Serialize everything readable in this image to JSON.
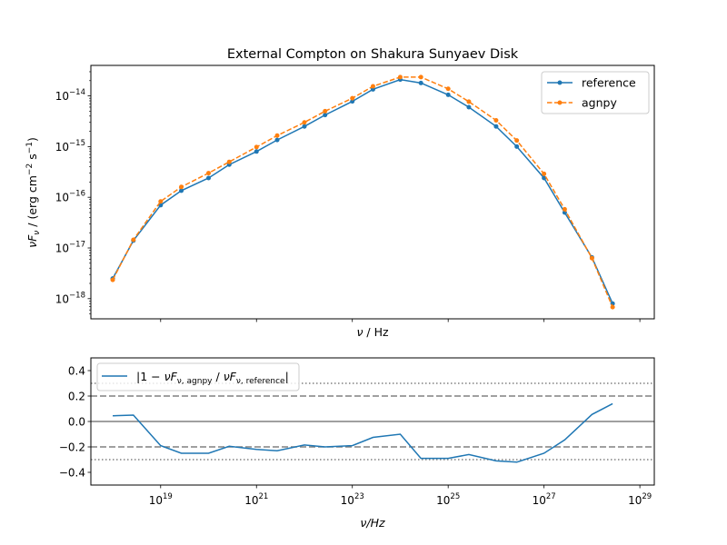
{
  "chart_data": [
    {
      "type": "line",
      "title": "External Compton on Shakura Sunyaev Disk",
      "xlabel": "ν / Hz",
      "ylabel": "νF_ν / (erg cm⁻² s⁻¹)",
      "xscale": "log",
      "yscale": "log",
      "xlim": [
        3.5e+17,
        2e+29
      ],
      "ylim": [
        4e-19,
        4e-14
      ],
      "x_ticks": [
        1e+19,
        1e+21,
        1e+23,
        1e+25,
        1e+27,
        1e+29
      ],
      "y_ticks": [
        {
          "value": 1e-18,
          "base": "10",
          "exp": "−18"
        },
        {
          "value": 1e-17,
          "base": "10",
          "exp": "−17"
        },
        {
          "value": 1e-16,
          "base": "10",
          "exp": "−16"
        },
        {
          "value": 1e-15,
          "base": "10",
          "exp": "−15"
        },
        {
          "value": 1e-14,
          "base": "10",
          "exp": "−14"
        }
      ],
      "legend_position": "top-right",
      "grid": false,
      "x": [
        1e+18,
        2.7e+18,
        1e+19,
        2.7e+19,
        1e+20,
        2.7e+20,
        1e+21,
        2.7e+21,
        1e+22,
        2.7e+22,
        1e+23,
        2.7e+23,
        1e+24,
        2.7e+24,
        1e+25,
        2.7e+25,
        1e+26,
        2.7e+26,
        1e+27,
        2.7e+27,
        1e+28,
        2.7e+28
      ],
      "series": [
        {
          "name": "reference",
          "color": "#1f77b4",
          "linestyle": "solid",
          "values": [
            2.5e-18,
            1.4e-17,
            7e-17,
            1.35e-16,
            2.4e-16,
            4.4e-16,
            8e-16,
            1.35e-15,
            2.5e-15,
            4.2e-15,
            7.8e-15,
            1.35e-14,
            2.1e-14,
            1.8e-14,
            1.05e-14,
            6e-15,
            2.5e-15,
            1e-15,
            2.4e-16,
            5e-17,
            6.5e-18,
            8e-19
          ]
        },
        {
          "name": "agnpy",
          "color": "#ff7f0e",
          "linestyle": "dashed",
          "values": [
            2.35e-18,
            1.45e-17,
            8.3e-17,
            1.6e-16,
            3e-16,
            5e-16,
            9.8e-16,
            1.65e-15,
            3e-15,
            5e-15,
            9e-15,
            1.55e-14,
            2.35e-14,
            2.35e-14,
            1.38e-14,
            7.7e-15,
            3.3e-15,
            1.32e-15,
            2.9e-16,
            5.8e-17,
            6.3e-18,
            6.8e-19
          ]
        }
      ]
    },
    {
      "type": "line",
      "xlabel": "ν/Hz",
      "xscale": "log",
      "xlim": [
        3.5e+17,
        2e+29
      ],
      "ylim": [
        -0.5,
        0.5
      ],
      "y_ticks": [
        {
          "value": -0.4,
          "label": "−0.4"
        },
        {
          "value": -0.2,
          "label": "−0.2"
        },
        {
          "value": 0.0,
          "label": "0.0"
        },
        {
          "value": 0.2,
          "label": "0.2"
        },
        {
          "value": 0.4,
          "label": "0.4"
        }
      ],
      "x_ticks": [
        {
          "value": 1e+19,
          "base": "10",
          "exp": "19"
        },
        {
          "value": 1e+21,
          "base": "10",
          "exp": "21"
        },
        {
          "value": 1e+23,
          "base": "10",
          "exp": "23"
        },
        {
          "value": 1e+25,
          "base": "10",
          "exp": "25"
        },
        {
          "value": 1e+27,
          "base": "10",
          "exp": "27"
        },
        {
          "value": 1e+29,
          "base": "10",
          "exp": "29"
        }
      ],
      "legend_position": "top-left",
      "grid": false,
      "reference_lines": [
        {
          "value": 0.0,
          "style": "solid",
          "color": "#808080"
        },
        {
          "value": 0.2,
          "style": "dashed",
          "color": "#808080"
        },
        {
          "value": -0.2,
          "style": "dashed",
          "color": "#808080"
        },
        {
          "value": 0.3,
          "style": "dotted",
          "color": "#808080"
        },
        {
          "value": -0.3,
          "style": "dotted",
          "color": "#808080"
        }
      ],
      "x": [
        1e+18,
        2.7e+18,
        1e+19,
        2.7e+19,
        1e+20,
        2.7e+20,
        1e+21,
        2.7e+21,
        1e+22,
        2.7e+22,
        1e+23,
        2.7e+23,
        1e+24,
        2.7e+24,
        1e+25,
        2.7e+25,
        1e+26,
        2.7e+26,
        1e+27,
        2.7e+27,
        1e+28,
        2.7e+28
      ],
      "series": [
        {
          "name": "|1 − νF_ν,agnpy / νF_ν,reference|",
          "name_parts": {
            "pre": "|1 − ",
            "nu": "ν",
            "F": "F",
            "sub1": "ν, agnpy",
            "slash": " / ",
            "sub2": "ν, reference",
            "post": "|"
          },
          "color": "#1f77b4",
          "linestyle": "solid",
          "values": [
            0.045,
            0.05,
            -0.19,
            -0.25,
            -0.25,
            -0.195,
            -0.22,
            -0.23,
            -0.185,
            -0.2,
            -0.19,
            -0.125,
            -0.1,
            -0.29,
            -0.29,
            -0.26,
            -0.31,
            -0.32,
            -0.25,
            -0.145,
            0.055,
            0.14
          ]
        }
      ]
    }
  ]
}
